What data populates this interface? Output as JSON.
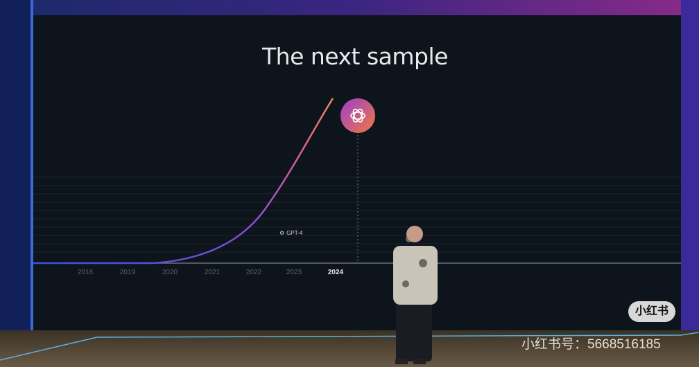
{
  "slide": {
    "title": "The next sample",
    "years": [
      "2018",
      "2019",
      "2020",
      "2021",
      "2022",
      "2023",
      "2024"
    ],
    "current_year": "2024",
    "marker_label": "GPT-4",
    "logo_icon": "openai-logo-icon",
    "curve_colors": [
      "#3b4fd8",
      "#8a4fd8",
      "#e2608a",
      "#f08a5a"
    ]
  },
  "watermark": {
    "badge": "小红书",
    "account": "小红书号：5668516185"
  }
}
